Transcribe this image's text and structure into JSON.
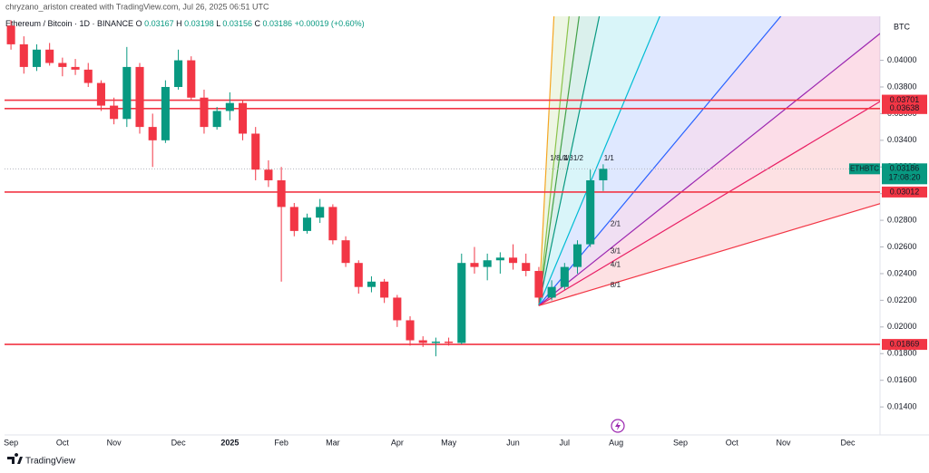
{
  "header": {
    "credit": "chryzano_ariston created with TradingView.com, Jul 26, 2025 06:51 UTC",
    "brand": "TradingView"
  },
  "chart_data": {
    "type": "candlestick",
    "symbol": "Ethereum / Bitcoin · 1D · BINANCE",
    "ohlc_legend": [
      {
        "label": "O",
        "value": 0.03167
      },
      {
        "label": "H",
        "value": 0.03198
      },
      {
        "label": "L",
        "value": 0.03156
      },
      {
        "label": "C",
        "value": 0.03186
      }
    ],
    "change": "+0.00019 (+0.60%)",
    "currency": "BTC",
    "categories": [
      "Sep",
      null,
      null,
      null,
      "Oct",
      null,
      null,
      null,
      "Nov",
      null,
      null,
      null,
      null,
      "Dec",
      null,
      null,
      null,
      "2025",
      null,
      null,
      null,
      "Feb",
      null,
      null,
      null,
      "Mar",
      null,
      null,
      null,
      null,
      "Apr",
      null,
      null,
      null,
      "May",
      null,
      null,
      null,
      null,
      "Jun",
      null,
      null,
      null,
      "Jul",
      null,
      null,
      null,
      "Aug",
      null,
      null,
      null,
      null,
      "Sep",
      null,
      null,
      null,
      "Oct",
      null,
      null,
      null,
      "Nov",
      null,
      null,
      null,
      null,
      "Dec",
      null,
      null
    ],
    "open": [
      0.0426,
      0.0412,
      0.0395,
      0.0408,
      0.0398,
      0.0395,
      0.0393,
      0.0383,
      0.0366,
      0.0356,
      0.0395,
      0.035,
      0.034,
      0.038,
      0.04,
      0.0372,
      0.035,
      0.0362,
      0.0368,
      0.0345,
      0.0318,
      0.031,
      0.029,
      0.0272,
      0.0282,
      0.029,
      0.0265,
      0.0248,
      0.023,
      0.0234,
      0.0222,
      0.0205,
      0.019,
      0.0188,
      0.0189,
      0.0188,
      0.0248,
      0.0245,
      0.025,
      0.0252,
      0.0248,
      0.0242,
      0.0222,
      0.023,
      0.0245,
      0.0262,
      0.031,
      null,
      null,
      null,
      null,
      null,
      null,
      null,
      null,
      null,
      null,
      null,
      null,
      null,
      null,
      null,
      null,
      null,
      null,
      null,
      null,
      null
    ],
    "high": [
      0.043,
      0.0418,
      0.0412,
      0.0413,
      0.0402,
      0.0401,
      0.0398,
      0.0385,
      0.0372,
      0.041,
      0.0398,
      0.036,
      0.0385,
      0.0408,
      0.0403,
      0.0378,
      0.0365,
      0.0376,
      0.037,
      0.035,
      0.0325,
      0.032,
      0.0293,
      0.0285,
      0.0296,
      0.0292,
      0.0268,
      0.025,
      0.0238,
      0.0236,
      0.0224,
      0.0208,
      0.0193,
      0.0192,
      0.0192,
      0.0255,
      0.026,
      0.0255,
      0.0256,
      0.0262,
      0.0255,
      0.0245,
      0.0235,
      0.0248,
      0.0265,
      0.0318,
      0.0322,
      null,
      null,
      null,
      null,
      null,
      null,
      null,
      null,
      null,
      null,
      null,
      null,
      null,
      null,
      null,
      null,
      null,
      null,
      null,
      null,
      null
    ],
    "low": [
      0.0408,
      0.039,
      0.0392,
      0.0396,
      0.0388,
      0.0389,
      0.038,
      0.0362,
      0.0352,
      0.035,
      0.0345,
      0.032,
      0.0338,
      0.0378,
      0.037,
      0.0345,
      0.0348,
      0.0355,
      0.034,
      0.031,
      0.0305,
      0.0234,
      0.0268,
      0.027,
      0.0278,
      0.0262,
      0.0245,
      0.0225,
      0.0226,
      0.0218,
      0.02,
      0.0186,
      0.0185,
      0.0178,
      0.0186,
      0.0187,
      0.024,
      0.0235,
      0.024,
      0.0243,
      0.0238,
      0.0218,
      0.022,
      0.0228,
      0.024,
      0.026,
      0.0302,
      null,
      null,
      null,
      null,
      null,
      null,
      null,
      null,
      null,
      null,
      null,
      null,
      null,
      null,
      null,
      null,
      null,
      null,
      null,
      null,
      null
    ],
    "close": [
      0.0412,
      0.0395,
      0.0408,
      0.0398,
      0.0395,
      0.0393,
      0.0383,
      0.0366,
      0.0356,
      0.0395,
      0.035,
      0.034,
      0.038,
      0.04,
      0.0372,
      0.035,
      0.0362,
      0.0368,
      0.0345,
      0.0318,
      0.031,
      0.029,
      0.0272,
      0.0282,
      0.029,
      0.0265,
      0.0248,
      0.023,
      0.0234,
      0.0222,
      0.0205,
      0.019,
      0.0188,
      0.0189,
      0.0188,
      0.0248,
      0.0245,
      0.025,
      0.0252,
      0.0248,
      0.0242,
      0.0222,
      0.023,
      0.0245,
      0.0262,
      0.031,
      0.03186,
      null,
      null,
      null,
      null,
      null,
      null,
      null,
      null,
      null,
      null,
      null,
      null,
      null,
      null,
      null,
      null,
      null,
      null,
      null,
      null,
      null
    ],
    "up_color": "#089981",
    "down_color": "#f23645",
    "ylim": [
      0.0119,
      0.0433
    ],
    "yticks": [
      {
        "value": 0.014,
        "label": "0.01400"
      },
      {
        "value": 0.016,
        "label": "0.01600"
      },
      {
        "value": 0.018,
        "label": "0.01800"
      },
      {
        "value": 0.02,
        "label": "0.02000"
      },
      {
        "value": 0.022,
        "label": "0.02200"
      },
      {
        "value": 0.024,
        "label": "0.02400"
      },
      {
        "value": 0.026,
        "label": "0.02600"
      },
      {
        "value": 0.028,
        "label": "0.02800"
      },
      {
        "value": 0.03,
        "label": "0.03000"
      },
      {
        "value": 0.032,
        "label": "0.03200"
      },
      {
        "value": 0.034,
        "label": "0.03400"
      },
      {
        "value": 0.036,
        "label": "0.03600"
      },
      {
        "value": 0.038,
        "label": "0.03800"
      },
      {
        "value": 0.04,
        "label": "0.04000"
      }
    ],
    "grid": false,
    "levels": [
      {
        "value": 0.03701,
        "label": "0.03701"
      },
      {
        "value": 0.03638,
        "label": "0.03638"
      },
      {
        "value": 0.03012,
        "label": "0.03012"
      },
      {
        "value": 0.01869,
        "label": "0.01869"
      }
    ],
    "level_color": "#f23645",
    "last_price": {
      "name": "ETHBTC",
      "value": 0.03186,
      "countdown": "17:08:20",
      "color": "#089981"
    },
    "gann_fan": {
      "origin_index": 41,
      "origin_price": 0.0216,
      "unit_per_bar": 0.00231,
      "lines": [
        {
          "label": "1/8",
          "ratio": 0.125,
          "color": "#f5a623"
        },
        {
          "label": "1/4",
          "ratio": 0.25,
          "color": "#8bc34a"
        },
        {
          "label": "1/3",
          "ratio": 0.3333,
          "color": "#43a047"
        },
        {
          "label": "1/2",
          "ratio": 0.5,
          "color": "#089981"
        },
        {
          "label": "1/1",
          "ratio": 1,
          "color": "#00bcd4"
        },
        {
          "label": "2/1",
          "ratio": 2,
          "color": "#2962ff"
        },
        {
          "label": "3/1",
          "ratio": 3,
          "color": "#9c27b0"
        },
        {
          "label": "4/1",
          "ratio": 4,
          "color": "#e91e63"
        },
        {
          "label": "8/1",
          "ratio": 8,
          "color": "#f23645"
        }
      ]
    }
  }
}
